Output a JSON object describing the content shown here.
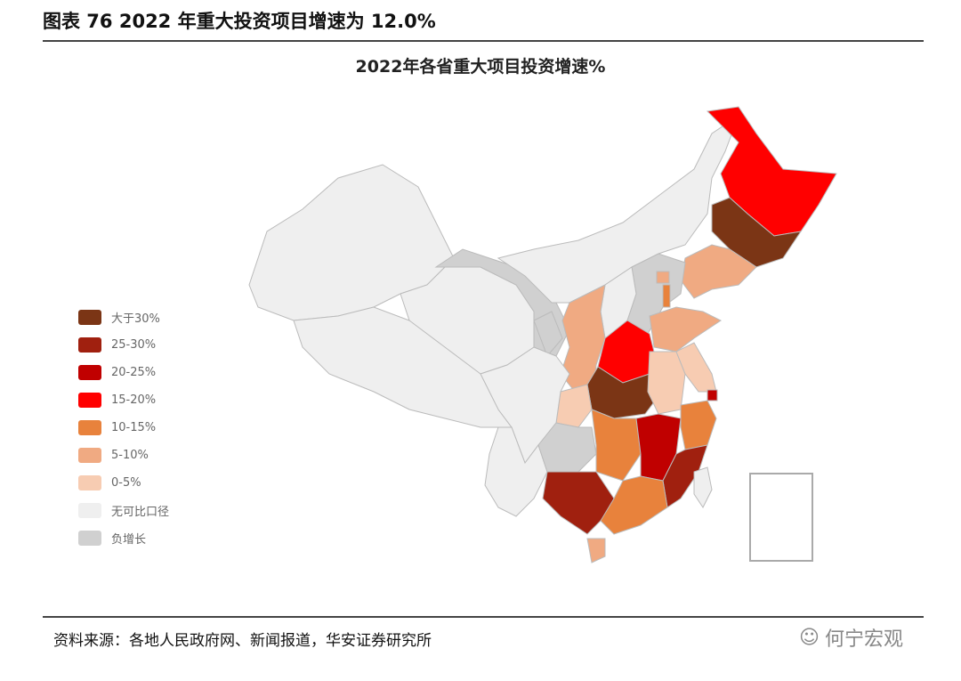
{
  "header": {
    "title": "图表 76 2022 年重大投资项目增速为 12.0%"
  },
  "map": {
    "title": "2022年各省重大项目投资增速%",
    "legend": [
      {
        "key": "gt30",
        "label": "大于30%",
        "color": "#7B3515"
      },
      {
        "key": "25-30",
        "label": "25-30%",
        "color": "#A0200F"
      },
      {
        "key": "20-25",
        "label": "20-25%",
        "color": "#C00000"
      },
      {
        "key": "15-20",
        "label": "15-20%",
        "color": "#FF0000"
      },
      {
        "key": "10-15",
        "label": "10-15%",
        "color": "#E8823C"
      },
      {
        "key": "5-10",
        "label": "5-10%",
        "color": "#F0AA82"
      },
      {
        "key": "0-5",
        "label": "0-5%",
        "color": "#F7CCB2"
      },
      {
        "key": "na",
        "label": "无可比口径",
        "color": "#EFEFEF"
      },
      {
        "key": "neg",
        "label": "负增长",
        "color": "#D0D0D0"
      }
    ],
    "regions": {
      "xinjiang": "na",
      "tibet": "na",
      "qinghai": "na",
      "gansu": "neg",
      "ningxia": "neg",
      "inner_mongolia": "na",
      "heilongjiang": "15-20",
      "jilin": "gt30",
      "liaoning": "5-10",
      "hebei": "neg",
      "beijing": "5-10",
      "tianjin": "10-15",
      "shanxi": "na",
      "shandong": "5-10",
      "shaanxi": "5-10",
      "henan": "15-20",
      "hubei": "gt30",
      "anhui": "0-5",
      "jiangsu": "0-5",
      "shanghai": "20-25",
      "chongqing": "0-5",
      "sichuan": "na",
      "yunnan": "na",
      "guizhou": "neg",
      "hunan": "10-15",
      "jiangxi": "20-25",
      "zhejiang": "10-15",
      "fujian": "25-30",
      "guangxi": "25-30",
      "guangdong": "10-15",
      "hainan": "5-10",
      "taiwan": "na"
    }
  },
  "footer": {
    "source": "资料来源：各地人民政府网、新闻报道，华安证券研究所",
    "watermark": "何宁宏观"
  }
}
